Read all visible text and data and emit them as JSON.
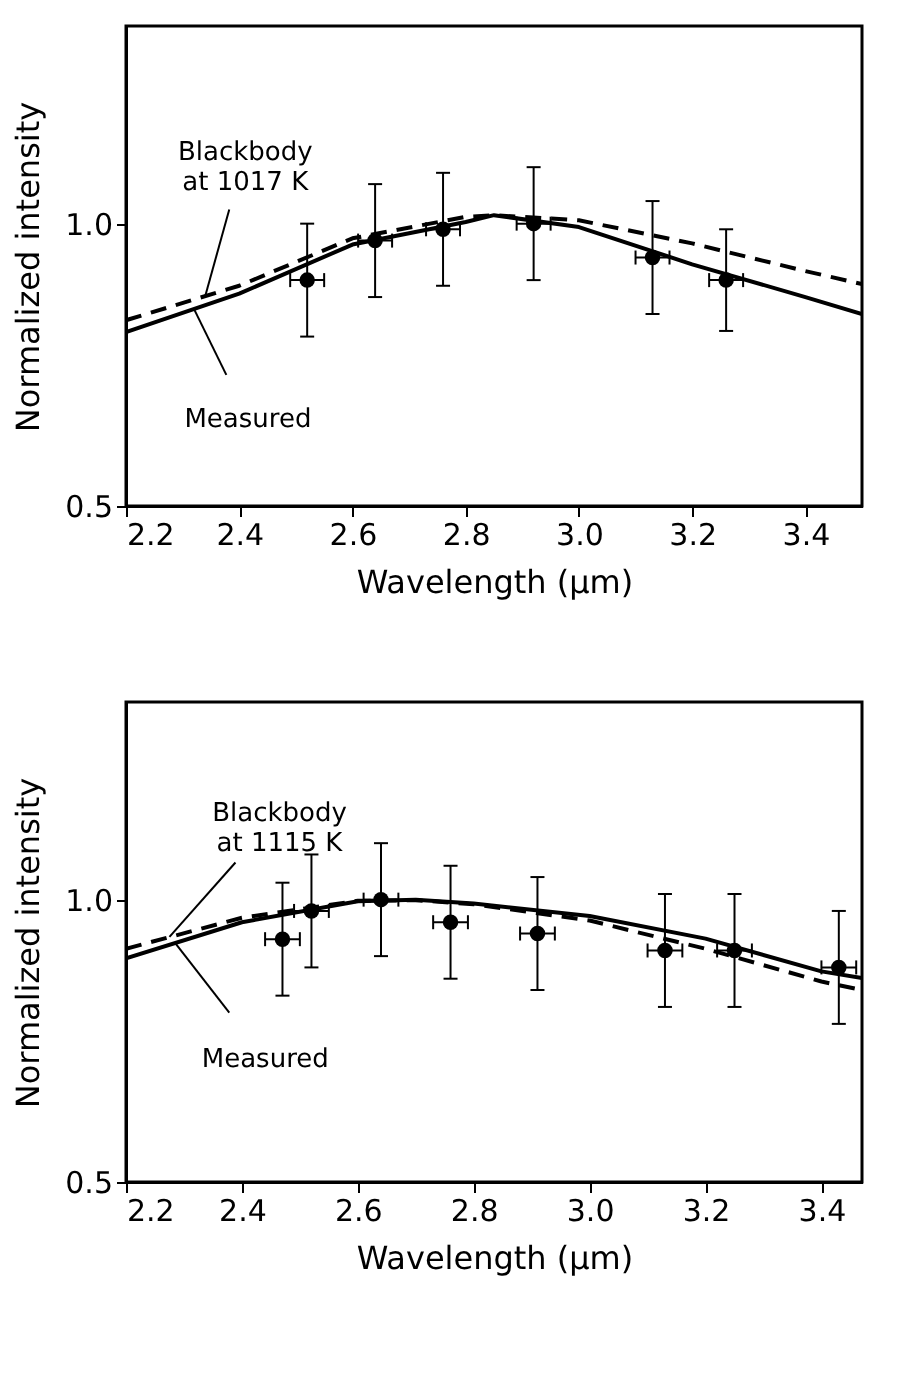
{
  "chart_data": [
    {
      "type": "line",
      "xlabel": "Wavelength (μm)",
      "ylabel": "Normalized intensity",
      "xlim": [
        2.2,
        3.5
      ],
      "ylim": [
        0.5,
        1.35
      ],
      "xticks": [
        2.2,
        2.4,
        2.6,
        2.8,
        {
          "value": 3,
          "label": "3.0"
        },
        3.2,
        3.4
      ],
      "yticks": [
        0.5,
        {
          "value": 1,
          "label": "1.0"
        }
      ],
      "grid": false,
      "series": [
        {
          "line_style": "solid",
          "color": "#000000",
          "x": [
            2.2,
            2.4,
            2.6,
            2.8,
            2.85,
            3.0,
            3.2,
            3.4,
            3.5
          ],
          "values": [
            0.808,
            0.876,
            0.963,
            1.003,
            1.015,
            0.994,
            0.928,
            0.87,
            0.84
          ]
        },
        {
          "line_style": "dashed",
          "color": "#000000",
          "x": [
            2.2,
            2.4,
            2.6,
            2.8,
            2.85,
            3.0,
            3.2,
            3.4,
            3.5
          ],
          "values": [
            0.829,
            0.89,
            0.974,
            1.012,
            1.015,
            1.006,
            0.965,
            0.916,
            0.893
          ]
        },
        {
          "type": "scatter",
          "marker": "circle",
          "color": "#000000",
          "x": [
            2.52,
            2.64,
            2.76,
            2.92,
            3.13,
            3.26
          ],
          "values": [
            0.9,
            0.97,
            0.99,
            1.0,
            0.94,
            0.9
          ],
          "errors": [
            0.1,
            0.1,
            0.1,
            0.1,
            0.1,
            0.09
          ],
          "xerrors": [
            0.03,
            0.03,
            0.03,
            0.03,
            0.03,
            0.03
          ]
        }
      ],
      "annotations": [
        {
          "text": "Blackbody\nat 1017 K",
          "x": 2.34,
          "y": 0.872
        },
        {
          "text": "Measured",
          "x": 2.32,
          "y": 0.849
        }
      ]
    },
    {
      "type": "line",
      "xlabel": "Wavelength (μm)",
      "ylabel": "Normalized intensity",
      "xlim": [
        2.2,
        3.47
      ],
      "ylim": [
        0.5,
        1.35
      ],
      "xticks": [
        2.2,
        2.4,
        2.6,
        2.8,
        {
          "value": 3,
          "label": "3.0"
        },
        3.2,
        3.4
      ],
      "yticks": [
        0.5,
        {
          "value": 1,
          "label": "1.0"
        }
      ],
      "grid": false,
      "series": [
        {
          "line_style": "solid",
          "color": "#000000",
          "x": [
            2.2,
            2.4,
            2.6,
            2.7,
            2.8,
            3.0,
            3.2,
            3.4,
            3.47
          ],
          "values": [
            0.896,
            0.96,
            0.997,
            1.0,
            0.993,
            0.971,
            0.931,
            0.873,
            0.861
          ]
        },
        {
          "line_style": "dashed",
          "color": "#000000",
          "x": [
            2.2,
            2.4,
            2.6,
            2.7,
            2.8,
            3.0,
            3.2,
            3.4,
            3.47
          ],
          "values": [
            0.913,
            0.968,
            0.998,
            0.999,
            0.992,
            0.963,
            0.913,
            0.855,
            0.84
          ]
        },
        {
          "type": "scatter",
          "marker": "circle",
          "color": "#000000",
          "x": [
            2.47,
            2.52,
            2.64,
            2.76,
            2.91,
            3.13,
            3.25,
            3.43
          ],
          "values": [
            0.93,
            0.98,
            1.0,
            0.96,
            0.94,
            0.91,
            0.91,
            0.88
          ],
          "errors": [
            0.1,
            0.1,
            0.1,
            0.1,
            0.1,
            0.1,
            0.1,
            0.1
          ],
          "xerrors": [
            0.03,
            0.03,
            0.03,
            0.03,
            0.03,
            0.03,
            0.03,
            0.03
          ]
        }
      ],
      "annotations": [
        {
          "text": "Blackbody\nat 1115 K",
          "x": 2.275,
          "y": 0.934
        },
        {
          "text": "Measured",
          "x": 2.285,
          "y": 0.923
        }
      ]
    }
  ]
}
